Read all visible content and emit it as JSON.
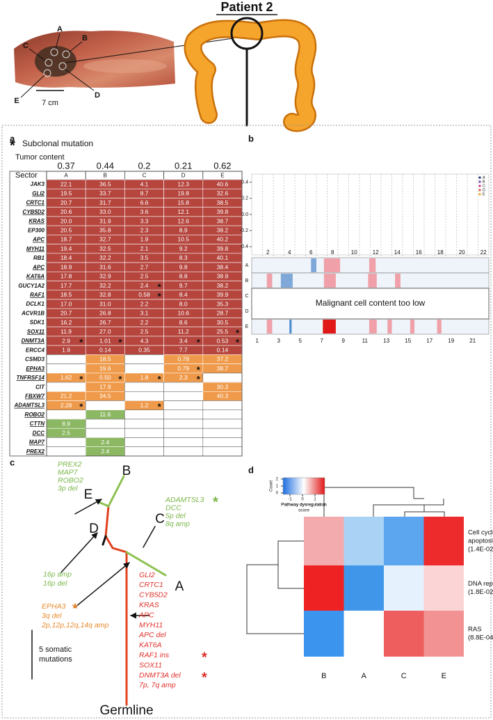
{
  "title": "Patient 2",
  "photo": {
    "labels": [
      "A",
      "B",
      "C",
      "D",
      "E"
    ],
    "scale": "7 cm"
  },
  "panel_a": {
    "label": "a",
    "star": "*",
    "legend": "Subclonal mutation",
    "tumor_content_label": "Tumor content",
    "tumor_content": [
      0.37,
      0.44,
      0.2,
      0.21,
      0.62
    ],
    "sector_label": "Sector",
    "sectors": [
      "A",
      "B",
      "C",
      "D",
      "E"
    ],
    "colors": {
      "red": "#b5453d",
      "orange": "#ef9a4a",
      "green": "#8cb863"
    },
    "rows": [
      {
        "gene": "JAK3",
        "underline": false,
        "group": "red",
        "values": [
          "22.1",
          "36.5",
          "4.1",
          "12.3",
          "40.6"
        ],
        "subclonal": []
      },
      {
        "gene": "GLI2",
        "underline": true,
        "group": "red",
        "values": [
          "19.5",
          "33.7",
          "8.7",
          "19.8",
          "32.6"
        ],
        "subclonal": []
      },
      {
        "gene": "CRTC1",
        "underline": true,
        "group": "red",
        "values": [
          "20.7",
          "31.7",
          "6.6",
          "15.8",
          "38.5"
        ],
        "subclonal": []
      },
      {
        "gene": "CYB5D2",
        "underline": true,
        "group": "red",
        "values": [
          "20.6",
          "33.0",
          "3.6",
          "12.1",
          "39.8"
        ],
        "subclonal": []
      },
      {
        "gene": "KRAS",
        "underline": true,
        "group": "red",
        "values": [
          "20.0",
          "31.9",
          "3.3",
          "12.6",
          "38.7"
        ],
        "subclonal": []
      },
      {
        "gene": "EP300",
        "underline": false,
        "group": "red",
        "values": [
          "20.5",
          "35.8",
          "2.3",
          "8.9",
          "38.2"
        ],
        "subclonal": []
      },
      {
        "gene": "APC",
        "underline": true,
        "group": "red",
        "values": [
          "18.7",
          "32.7",
          "1.9",
          "10.5",
          "40.2"
        ],
        "subclonal": []
      },
      {
        "gene": "MYH11",
        "underline": true,
        "group": "red",
        "values": [
          "19.4",
          "32.5",
          "2.1",
          "9.2",
          "39.8"
        ],
        "subclonal": []
      },
      {
        "gene": "RB1",
        "underline": false,
        "group": "red",
        "values": [
          "18.4",
          "32.2",
          "3.5",
          "8.3",
          "40.1"
        ],
        "subclonal": []
      },
      {
        "gene": "APC",
        "underline": true,
        "group": "red",
        "values": [
          "18.9",
          "31.6",
          "2.7",
          "9.8",
          "38.4"
        ],
        "subclonal": []
      },
      {
        "gene": "KAT6A",
        "underline": true,
        "group": "red",
        "values": [
          "17.8",
          "32.9",
          "2.5",
          "8.8",
          "38.9"
        ],
        "subclonal": []
      },
      {
        "gene": "GUCY1A2",
        "underline": false,
        "group": "red",
        "values": [
          "17.7",
          "32.2",
          "2.4",
          "9.7",
          "38.2"
        ],
        "subclonal": [
          2
        ]
      },
      {
        "gene": "RAF1",
        "underline": true,
        "group": "red",
        "values": [
          "18.5",
          "32.8",
          "0.58",
          "8.4",
          "39.9"
        ],
        "subclonal": [
          2
        ]
      },
      {
        "gene": "DCLK1",
        "underline": false,
        "group": "red",
        "values": [
          "17.0",
          "31.0",
          "2.2",
          "8.0",
          "35.3"
        ],
        "subclonal": []
      },
      {
        "gene": "ACVR1B",
        "underline": false,
        "group": "red",
        "values": [
          "20.7",
          "26.8",
          "3.1",
          "10.6",
          "28.7"
        ],
        "subclonal": []
      },
      {
        "gene": "SDK1",
        "underline": false,
        "group": "red",
        "values": [
          "16.2",
          "26.7",
          "2.2",
          "8.6",
          "30.5"
        ],
        "subclonal": []
      },
      {
        "gene": "SOX11",
        "underline": true,
        "group": "red",
        "values": [
          "11.9",
          "27.0",
          "2.5",
          "11.2",
          "25.5"
        ],
        "subclonal": [
          4
        ]
      },
      {
        "gene": "DNMT3A",
        "underline": true,
        "group": "red",
        "values": [
          "2.9",
          "1.01",
          "4.3",
          "3.4",
          "0.53"
        ],
        "subclonal": [
          0,
          1,
          3,
          4
        ]
      },
      {
        "gene": "ERCC4",
        "underline": false,
        "group": "red",
        "values": [
          "1.9",
          "0.14",
          "0.35",
          "7.7",
          "0.14"
        ],
        "subclonal": []
      },
      {
        "gene": "CSMD3",
        "underline": false,
        "group": "orange",
        "values": [
          null,
          "18.5",
          null,
          "0.78",
          "37.2"
        ],
        "subclonal": []
      },
      {
        "gene": "EPHA3",
        "underline": true,
        "group": "orange",
        "values": [
          null,
          "19.6",
          null,
          "0.79",
          "38.7"
        ],
        "subclonal": [
          3
        ]
      },
      {
        "gene": "TNFRSF14",
        "underline": true,
        "group": "orange",
        "values": [
          "1.62",
          "0.50",
          "1.8",
          "2.3",
          null
        ],
        "subclonal": [
          0,
          1,
          2,
          3
        ]
      },
      {
        "gene": "CIT",
        "underline": false,
        "group": "orange",
        "values": [
          null,
          "17.9",
          null,
          null,
          "30.3"
        ],
        "subclonal": []
      },
      {
        "gene": "FBXW7",
        "underline": true,
        "group": "orange",
        "values": [
          "21.2",
          "34.5",
          null,
          null,
          "40.3"
        ],
        "subclonal": []
      },
      {
        "gene": "ADAMTSL3",
        "underline": true,
        "group": "orange",
        "values": [
          "2.28",
          null,
          "1.2",
          null,
          null
        ],
        "subclonal": [
          0,
          2
        ]
      },
      {
        "gene": "ROBO2",
        "underline": true,
        "group": "green",
        "values": [
          null,
          "11.6",
          null,
          null,
          null
        ],
        "subclonal": []
      },
      {
        "gene": "CTTN",
        "underline": true,
        "group": "green",
        "values": [
          "8.9",
          null,
          null,
          null,
          null
        ],
        "subclonal": []
      },
      {
        "gene": "DCC",
        "underline": true,
        "group": "green",
        "values": [
          "2.5",
          null,
          null,
          null,
          null
        ],
        "subclonal": []
      },
      {
        "gene": "MAP7",
        "underline": true,
        "group": "green",
        "values": [
          null,
          "2.4",
          null,
          null,
          null
        ],
        "subclonal": []
      },
      {
        "gene": "PREX2",
        "underline": true,
        "group": "green",
        "values": [
          null,
          "2.4",
          null,
          null,
          null
        ],
        "subclonal": []
      }
    ]
  },
  "panel_b": {
    "label": "b",
    "ylim": [
      -0.5,
      0.5
    ],
    "yticks": [
      0.4,
      0.2,
      {
        "value": 0,
        "label": "0.0"
      },
      -0.2,
      -0.4
    ],
    "chromosomes_top": [
      "2",
      "4",
      "6",
      "8",
      "10",
      "12",
      "14",
      "16",
      "18",
      "20",
      "22"
    ],
    "chromosomes_bottom": [
      "1",
      "3",
      "5",
      "7",
      "9",
      "11",
      "13",
      "15",
      "17",
      "19",
      "21"
    ],
    "legend": [
      {
        "name": "A",
        "color": "#1f2a7a"
      },
      {
        "name": "B",
        "color": "#7a3fb0"
      },
      {
        "name": "C",
        "color": "#c4368a"
      },
      {
        "name": "D",
        "color": "#e0503a"
      },
      {
        "name": "E",
        "color": "#f0a020"
      }
    ],
    "rows": [
      "A",
      "B",
      "C",
      "D",
      "E"
    ],
    "note": "Malignant cell content too low"
  },
  "panel_c": {
    "label": "c",
    "nodes": [
      "B",
      "E",
      "D",
      "C",
      "A"
    ],
    "groups": [
      {
        "color": "#7ab648",
        "lines": [
          "PREX2",
          "MAP7",
          "ROBO2",
          "3p del"
        ],
        "stars": []
      },
      {
        "color": "#7ab648",
        "lines": [
          "ADAMTSL3",
          "DCC",
          "5p del",
          "8q amp"
        ],
        "stars": [
          0
        ]
      },
      {
        "color": "#7ab648",
        "lines": [
          "16p amp",
          "16p del"
        ],
        "stars": []
      },
      {
        "color": "#e8892a",
        "lines": [
          "EPHA3",
          "3q del",
          "2p,12p,12q,14q amp"
        ],
        "stars": [
          0
        ]
      },
      {
        "color": "#e0302a",
        "lines": [
          "GLI2",
          "CRTC1",
          "CYB5D2",
          "KRAS",
          "APC",
          "MYH11",
          "APC del",
          "KAT6A",
          "RAF1 ins",
          "SOX11",
          "DNMT3A del",
          "7p, 7q amp"
        ],
        "stars": [
          8,
          10
        ]
      }
    ],
    "scale": [
      "5 somatic",
      "mutations"
    ],
    "root": "Germline"
  },
  "panel_d": {
    "label": "d",
    "scale_ticks": [
      -1,
      0,
      1
    ],
    "count_ticks": [
      0,
      1,
      2
    ],
    "count_label": "Count",
    "scale_label": [
      "Pathway dysregulation",
      "score"
    ],
    "columns": [
      "B",
      "A",
      "C",
      "E"
    ],
    "rows": [
      [
        "Cell cycle +",
        "apoptosis",
        "(1.4E-02)"
      ],
      [
        "DNA repair",
        "(1.8E-02)"
      ],
      [
        "RAS",
        "(8.8E-04)"
      ]
    ],
    "cell_colors": [
      [
        "#f3abae",
        "#a9d2f4",
        "#5ba6ee",
        "#ee2b2c"
      ],
      [
        "#ee2222",
        "#4096e8",
        "#e5f1fc",
        "#fbd4d5"
      ],
      [
        "#3b94ed",
        "#ffffff",
        "#ee5e5f",
        "#f29293"
      ]
    ]
  }
}
